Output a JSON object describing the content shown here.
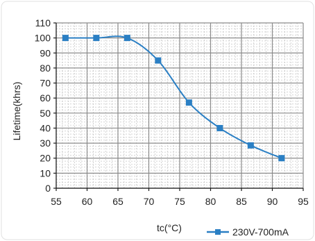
{
  "chart_data": {
    "type": "line",
    "xlabel": "tc(°C)",
    "ylabel": "Lifetime(khrs)",
    "xlim": [
      55,
      95
    ],
    "ylim": [
      0,
      110
    ],
    "x_ticks": [
      55,
      60,
      65,
      70,
      75,
      80,
      85,
      90,
      95
    ],
    "y_ticks": [
      0,
      10,
      20,
      30,
      40,
      50,
      60,
      70,
      80,
      90,
      100,
      110
    ],
    "x_minor_step": 1,
    "y_minor_step": 2,
    "grid": true,
    "legend_position": "bottom-right",
    "series": [
      {
        "name": "230V-700mA",
        "color": "#2a7fc4",
        "marker": "square",
        "x": [
          56.5,
          61.5,
          66.5,
          71.5,
          76.5,
          81.5,
          86.5,
          91.5
        ],
        "y": [
          100,
          100,
          100,
          85,
          57,
          40,
          28.5,
          20
        ]
      }
    ]
  }
}
